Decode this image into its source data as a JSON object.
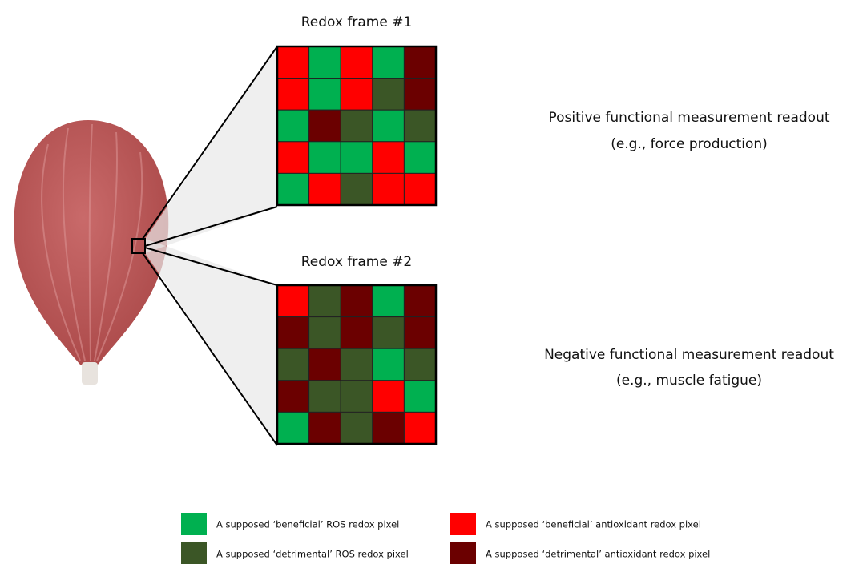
{
  "frames": [
    {
      "title": "Redox frame #1",
      "readout": "Positive functional measurement readout",
      "readout_example": "(e.g., force production)",
      "cells": [
        [
          "#ff0000",
          "#00b050",
          "#ff0000",
          "#00b050",
          "#6b0000"
        ],
        [
          "#ff0000",
          "#00b050",
          "#ff0000",
          "#3b5626",
          "#6b0000"
        ],
        [
          "#00b050",
          "#6b0000",
          "#3b5626",
          "#00b050",
          "#3b5626"
        ],
        [
          "#ff0000",
          "#00b050",
          "#00b050",
          "#ff0000",
          "#00b050"
        ],
        [
          "#00b050",
          "#ff0000",
          "#3b5626",
          "#ff0000",
          "#ff0000"
        ]
      ]
    },
    {
      "title": "Redox frame #2",
      "readout": "Negative functional measurement readout",
      "readout_example": "(e.g., muscle fatigue)",
      "cells": [
        [
          "#ff0000",
          "#3b5626",
          "#6b0000",
          "#00b050",
          "#6b0000"
        ],
        [
          "#6b0000",
          "#3b5626",
          "#6b0000",
          "#3b5626",
          "#6b0000"
        ],
        [
          "#3b5626",
          "#6b0000",
          "#3b5626",
          "#00b050",
          "#3b5626"
        ],
        [
          "#6b0000",
          "#3b5626",
          "#3b5626",
          "#ff0000",
          "#00b050"
        ],
        [
          "#00b050",
          "#6b0000",
          "#3b5626",
          "#6b0000",
          "#ff0000"
        ]
      ]
    }
  ],
  "legend": [
    {
      "color": "#00b050",
      "label": "A supposed ‘beneficial’ ROS redox pixel"
    },
    {
      "color": "#ff0000",
      "label": "A supposed ‘beneficial’ antioxidant redox pixel"
    },
    {
      "color": "#3b5626",
      "label": "A supposed ‘detrimental’ ROS redox pixel"
    },
    {
      "color": "#6b0000",
      "label": "A supposed ‘detrimental’ antioxidant redox pixel"
    }
  ]
}
